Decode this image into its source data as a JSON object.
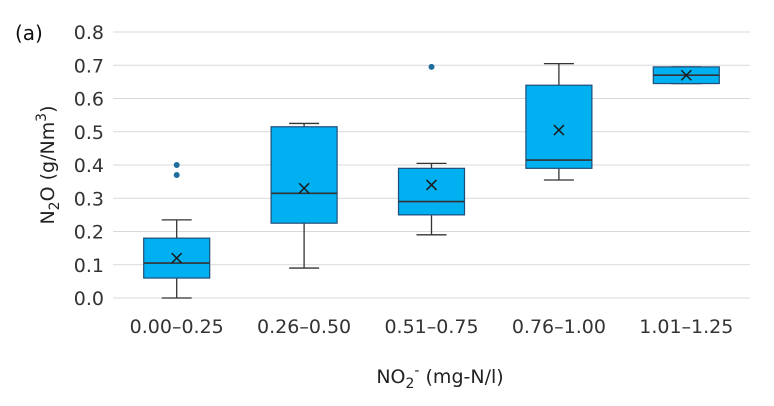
{
  "chart_data": {
    "type": "boxplot",
    "panel_label": "(a)",
    "xlabel": {
      "base": "NO",
      "sub": "2",
      "sup": "-",
      "rest": " (mg-N/l)"
    },
    "ylabel": {
      "base": "N",
      "sub": "2",
      "mid": "O (g/Nm",
      "sup": "3",
      "end": ")"
    },
    "ylim": [
      0,
      0.8
    ],
    "yticks": [
      "0.0",
      "0.1",
      "0.2",
      "0.3",
      "0.4",
      "0.5",
      "0.6",
      "0.7",
      "0.8"
    ],
    "grid": true,
    "categories": [
      "0.00–0.25",
      "0.26–0.50",
      "0.51–0.75",
      "0.76–1.00",
      "1.01–1.25"
    ],
    "boxes": [
      {
        "whisker_low": 0.0,
        "q1": 0.06,
        "median": 0.105,
        "q3": 0.18,
        "whisker_high": 0.235,
        "mean": 0.12,
        "outliers": [
          0.37,
          0.4
        ]
      },
      {
        "whisker_low": 0.09,
        "q1": 0.225,
        "median": 0.315,
        "q3": 0.515,
        "whisker_high": 0.525,
        "mean": 0.33,
        "outliers": []
      },
      {
        "whisker_low": 0.19,
        "q1": 0.25,
        "median": 0.29,
        "q3": 0.39,
        "whisker_high": 0.405,
        "mean": 0.34,
        "outliers": [
          0.695
        ]
      },
      {
        "whisker_low": 0.355,
        "q1": 0.39,
        "median": 0.415,
        "q3": 0.64,
        "whisker_high": 0.705,
        "mean": 0.505,
        "outliers": []
      },
      {
        "whisker_low": 0.645,
        "q1": 0.645,
        "median": 0.67,
        "q3": 0.695,
        "whisker_high": 0.695,
        "mean": 0.67,
        "outliers": []
      }
    ],
    "colors": {
      "box_fill": "#00b0f0",
      "box_edge": "#1f4e79",
      "line": "#333333",
      "grid": "#d9d9d9",
      "outlier": "#1f6e9c"
    }
  }
}
